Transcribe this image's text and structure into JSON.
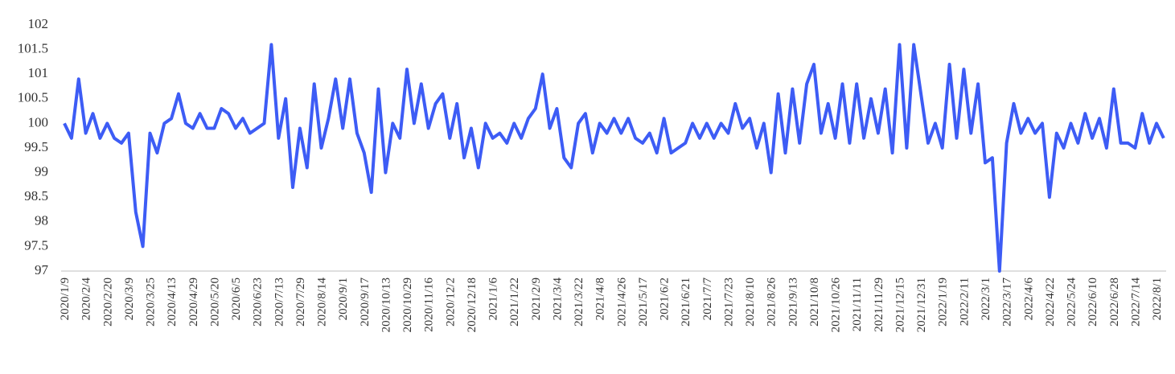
{
  "chart_data": {
    "type": "line",
    "color": "#3d5cf5",
    "ylim": [
      97,
      102
    ],
    "yticks": [
      97,
      97.5,
      98,
      98.5,
      99,
      99.5,
      100,
      100.5,
      101,
      101.5,
      102
    ],
    "categories": [
      "2020/1/9",
      null,
      null,
      "2020/2/4",
      null,
      null,
      "2020/2/20",
      null,
      null,
      "2020/3/9",
      null,
      null,
      "2020/3/25",
      null,
      null,
      "2020/4/13",
      null,
      null,
      "2020/4/29",
      null,
      null,
      "2020/5/20",
      null,
      null,
      "2020/6/5",
      null,
      null,
      "2020/6/23",
      null,
      null,
      "2020/7/13",
      null,
      null,
      "2020/7/29",
      null,
      null,
      "2020/8/14",
      null,
      null,
      "2020/9/1",
      null,
      null,
      "2020/9/17",
      null,
      null,
      "2020/10/13",
      null,
      null,
      "2020/10/29",
      null,
      null,
      "2020/11/16",
      null,
      null,
      "2020/12/2",
      null,
      null,
      "2020/12/18",
      null,
      null,
      "2021/1/6",
      null,
      null,
      "2021/1/22",
      null,
      null,
      "2021/2/9",
      null,
      null,
      "2021/3/4",
      null,
      null,
      "2021/3/22",
      null,
      null,
      "2021/4/8",
      null,
      null,
      "2021/4/26",
      null,
      null,
      "2021/5/17",
      null,
      null,
      "2021/6/2",
      null,
      null,
      "2021/6/21",
      null,
      null,
      "2021/7/7",
      null,
      null,
      "2021/7/23",
      null,
      null,
      "2021/8/10",
      null,
      null,
      "2021/8/26",
      null,
      null,
      "2021/9/13",
      null,
      null,
      "2021/10/8",
      null,
      null,
      "2021/10/26",
      null,
      null,
      "2021/11/11",
      null,
      null,
      "2021/11/29",
      null,
      null,
      "2021/12/15",
      null,
      null,
      "2021/12/31",
      null,
      null,
      "2022/1/19",
      null,
      null,
      "2022/2/11",
      null,
      null,
      "2022/3/1",
      null,
      null,
      "2022/3/17",
      null,
      null,
      "2022/4/6",
      null,
      null,
      "2022/4/22",
      null,
      null,
      "2022/5/24",
      null,
      null,
      "2022/6/10",
      null,
      null,
      "2022/6/28",
      null,
      null,
      "2022/7/14",
      null,
      null,
      "2022/8/1",
      null
    ],
    "values": [
      100.0,
      99.7,
      100.9,
      99.8,
      100.2,
      99.7,
      100.0,
      99.7,
      99.6,
      99.8,
      98.2,
      97.5,
      99.8,
      99.4,
      100.0,
      100.1,
      100.6,
      100.0,
      99.9,
      100.2,
      99.9,
      99.9,
      100.3,
      100.2,
      99.9,
      100.1,
      99.8,
      99.9,
      100.0,
      101.6,
      99.7,
      100.5,
      98.7,
      99.9,
      99.1,
      100.8,
      99.5,
      100.1,
      100.9,
      99.9,
      100.9,
      99.8,
      99.4,
      98.6,
      100.7,
      99.0,
      100.0,
      99.7,
      101.1,
      100.0,
      100.8,
      99.9,
      100.4,
      100.6,
      99.7,
      100.4,
      99.3,
      99.9,
      99.1,
      100.0,
      99.7,
      99.8,
      99.6,
      100.0,
      99.7,
      100.1,
      100.3,
      101.0,
      99.9,
      100.3,
      99.3,
      99.1,
      100.0,
      100.2,
      99.4,
      100.0,
      99.8,
      100.1,
      99.8,
      100.1,
      99.7,
      99.6,
      99.8,
      99.4,
      100.1,
      99.4,
      99.5,
      99.6,
      100.0,
      99.7,
      100.0,
      99.7,
      100.0,
      99.8,
      100.4,
      99.9,
      100.1,
      99.5,
      100.0,
      99.0,
      100.6,
      99.4,
      100.7,
      99.6,
      100.8,
      101.2,
      99.8,
      100.4,
      99.7,
      100.8,
      99.6,
      100.8,
      99.7,
      100.5,
      99.8,
      100.7,
      99.4,
      101.6,
      99.5,
      101.6,
      100.6,
      99.6,
      100.0,
      99.5,
      101.2,
      99.7,
      101.1,
      99.8,
      100.8,
      99.2,
      99.3,
      97.0,
      99.6,
      100.4,
      99.8,
      100.1,
      99.8,
      100.0,
      98.5,
      99.8,
      99.5,
      100.0,
      99.6,
      100.2,
      99.7,
      100.1,
      99.5,
      100.7,
      99.6,
      99.6,
      99.5,
      100.2,
      99.6,
      100.0,
      99.7
    ]
  }
}
